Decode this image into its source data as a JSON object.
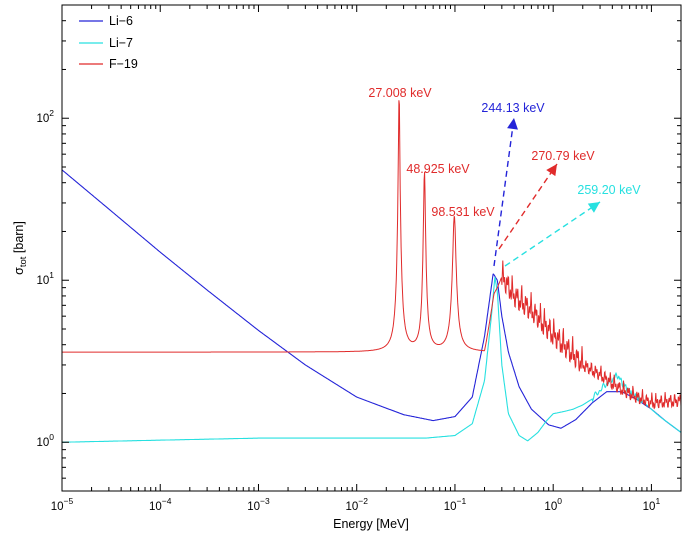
{
  "chart_data": {
    "type": "line",
    "xlabel": "Energy [MeV]",
    "ylabel_main": "σ",
    "ylabel_sub": "tot",
    "ylabel_unit": " [barn]",
    "x_scale": "log",
    "y_scale": "log",
    "xlim": [
      1e-05,
      20
    ],
    "ylim": [
      0.5,
      500
    ],
    "grid": false,
    "legend_position": "top-left",
    "x_ticks": [
      {
        "mantissa": "10",
        "exp": "−5"
      },
      {
        "mantissa": "10",
        "exp": "−4"
      },
      {
        "mantissa": "10",
        "exp": "−3"
      },
      {
        "mantissa": "10",
        "exp": "−2"
      },
      {
        "mantissa": "10",
        "exp": "−1"
      },
      {
        "mantissa": "10",
        "exp": "0"
      },
      {
        "mantissa": "10",
        "exp": "1"
      }
    ],
    "y_ticks": [
      {
        "mantissa": "10",
        "exp": "0"
      },
      {
        "mantissa": "10",
        "exp": "1"
      },
      {
        "mantissa": "10",
        "exp": "2"
      }
    ],
    "series": [
      {
        "name": "Li−6",
        "color": "#2424d8",
        "points": [
          [
            1e-05,
            48
          ],
          [
            3e-05,
            27.5
          ],
          [
            0.0001,
            14.9
          ],
          [
            0.0003,
            8.7
          ],
          [
            0.001,
            4.9
          ],
          [
            0.003,
            3.0
          ],
          [
            0.01,
            1.9
          ],
          [
            0.03,
            1.48
          ],
          [
            0.06,
            1.36
          ],
          [
            0.1,
            1.44
          ],
          [
            0.15,
            1.9
          ],
          [
            0.2,
            4.5
          ],
          [
            0.245,
            11.0
          ],
          [
            0.27,
            10.0
          ],
          [
            0.3,
            6.0
          ],
          [
            0.35,
            3.6
          ],
          [
            0.45,
            2.2
          ],
          [
            0.6,
            1.6
          ],
          [
            0.9,
            1.28
          ],
          [
            1.2,
            1.22
          ],
          [
            1.7,
            1.38
          ],
          [
            2.5,
            1.75
          ],
          [
            3.5,
            2.05
          ],
          [
            5,
            2.05
          ],
          [
            7,
            1.85
          ],
          [
            10,
            1.6
          ],
          [
            14,
            1.35
          ],
          [
            20,
            1.15
          ]
        ]
      },
      {
        "name": "Li−7",
        "color": "#27e0e0",
        "points": [
          [
            1e-05,
            1.0
          ],
          [
            0.0001,
            1.03
          ],
          [
            0.001,
            1.06
          ],
          [
            0.01,
            1.06
          ],
          [
            0.05,
            1.06
          ],
          [
            0.1,
            1.1
          ],
          [
            0.15,
            1.3
          ],
          [
            0.2,
            2.4
          ],
          [
            0.235,
            6.0
          ],
          [
            0.255,
            10.5
          ],
          [
            0.27,
            8.5
          ],
          [
            0.3,
            3.0
          ],
          [
            0.35,
            1.5
          ],
          [
            0.45,
            1.1
          ],
          [
            0.55,
            1.02
          ],
          [
            0.7,
            1.15
          ],
          [
            0.85,
            1.35
          ],
          [
            1.0,
            1.5
          ],
          [
            1.3,
            1.55
          ],
          [
            1.6,
            1.6
          ],
          [
            2.0,
            1.7
          ],
          [
            2.5,
            1.85
          ],
          [
            3.0,
            2.1
          ],
          [
            3.5,
            2.3
          ],
          [
            4.0,
            2.45
          ],
          [
            4.5,
            2.6
          ],
          [
            5.0,
            2.35
          ],
          [
            6.0,
            2.05
          ],
          [
            8,
            1.8
          ],
          [
            12,
            1.45
          ],
          [
            20,
            1.15
          ]
        ]
      },
      {
        "name": "F−19",
        "color": "#e02b2b",
        "baseline": 3.6,
        "peaks": [
          {
            "e": 0.027008,
            "peak": 140,
            "w": 0.05
          },
          {
            "e": 0.048925,
            "peak": 47,
            "w": 0.07
          },
          {
            "e": 0.098531,
            "peak": 25,
            "w": 0.12
          }
        ],
        "envelope": [
          [
            0.2,
            6.5
          ],
          [
            0.27,
            9.0
          ],
          [
            0.3,
            10.5
          ],
          [
            0.4,
            8.0
          ],
          [
            0.6,
            6.5
          ],
          [
            1.0,
            4.6
          ],
          [
            1.5,
            3.6
          ],
          [
            2,
            3.0
          ],
          [
            3,
            2.6
          ],
          [
            5,
            2.1
          ],
          [
            7,
            1.9
          ],
          [
            10,
            1.75
          ],
          [
            20,
            1.8
          ]
        ]
      }
    ],
    "annotations": [
      {
        "text": "27.008 keV",
        "color": "#e02b2b"
      },
      {
        "text": "48.925 keV",
        "color": "#e02b2b"
      },
      {
        "text": "98.531 keV",
        "color": "#e02b2b"
      },
      {
        "text": "244.13 keV",
        "color": "#2424d8"
      },
      {
        "text": "270.79 keV",
        "color": "#e02b2b"
      },
      {
        "text": "259.20 keV",
        "color": "#27e0e0"
      }
    ]
  }
}
